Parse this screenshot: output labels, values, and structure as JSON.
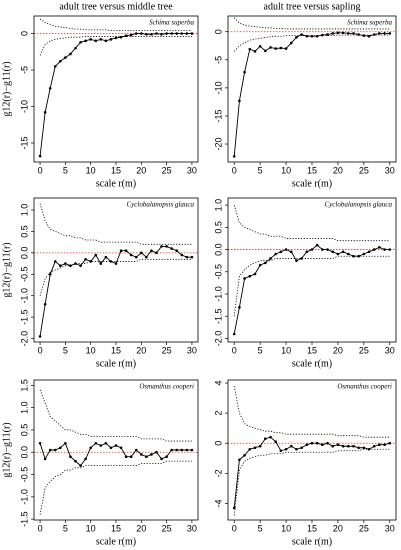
{
  "chart_data": [
    {
      "type": "line",
      "title": "adult tree versus middle tree",
      "annotation": "Schima superba",
      "xlabel": "scale r(m)",
      "ylabel": "g12(r)−g11(r)",
      "x": [
        0,
        1,
        2,
        3,
        4,
        5,
        6,
        7,
        8,
        9,
        10,
        11,
        12,
        13,
        14,
        15,
        16,
        17,
        18,
        19,
        20,
        21,
        22,
        23,
        24,
        25,
        26,
        27,
        28,
        29,
        30
      ],
      "xlim": [
        -1.2,
        31.2
      ],
      "xticks": [
        0,
        5,
        10,
        15,
        20,
        25,
        30
      ],
      "ylim": [
        -17.6,
        2.4
      ],
      "yticks": [
        -15,
        -10,
        -5,
        0
      ],
      "reference_line": 0,
      "reference_color": "#e0302a",
      "series": [
        {
          "color": "#000000",
          "style": "solid",
          "marker": true,
          "values": [
            -16.8,
            -10.8,
            -7.5,
            -4.5,
            -3.8,
            -3.3,
            -2.8,
            -2,
            -1.2,
            -1,
            -0.8,
            -1,
            -0.8,
            -1,
            -0.8,
            -0.6,
            -0.5,
            -0.3,
            -0.2,
            0,
            0,
            -0.1,
            -0.1,
            0,
            -0.1,
            0,
            0,
            0,
            0,
            0,
            0
          ]
        },
        {
          "color": "#000000",
          "style": "dotted",
          "marker": false,
          "values": [
            2,
            1.5,
            1.2,
            1,
            0.9,
            0.8,
            0.7,
            0.6,
            0.6,
            0.5,
            0.5,
            0.5,
            0.5,
            0.5,
            0.4,
            0.4,
            0.4,
            0.4,
            0.4,
            0.4,
            0.4,
            0.4,
            0.4,
            0.4,
            0.4,
            0.4,
            0.4,
            0.4,
            0.4,
            0.4,
            0.4
          ]
        },
        {
          "color": "#000000",
          "style": "dotted",
          "marker": false,
          "values": [
            -3,
            -1.5,
            -1,
            -0.8,
            -0.7,
            -0.6,
            -0.5,
            -0.5,
            -0.5,
            -0.4,
            -0.4,
            -0.4,
            -0.4,
            -0.4,
            -0.4,
            -0.4,
            -0.4,
            -0.4,
            -0.4,
            -0.4,
            -0.4,
            -0.4,
            -0.4,
            -0.4,
            -0.4,
            -0.4,
            -0.4,
            -0.4,
            -0.4,
            -0.4,
            -0.4
          ]
        }
      ]
    },
    {
      "type": "line",
      "title": "adult tree versus sapling",
      "annotation": "Schima superba",
      "xlabel": "scale r(m)",
      "x": [
        0,
        1,
        2,
        3,
        4,
        5,
        6,
        7,
        8,
        9,
        10,
        11,
        12,
        13,
        14,
        15,
        16,
        17,
        18,
        19,
        20,
        21,
        22,
        23,
        24,
        25,
        26,
        27,
        28,
        29,
        30
      ],
      "xlim": [
        -1.2,
        31.2
      ],
      "xticks": [
        0,
        5,
        10,
        15,
        20,
        25,
        30
      ],
      "ylim": [
        -23.2,
        2.8
      ],
      "yticks": [
        -20,
        -15,
        -10,
        -5,
        0
      ],
      "reference_line": 0,
      "reference_color": "#e0302a",
      "series": [
        {
          "color": "#000000",
          "style": "solid",
          "marker": true,
          "values": [
            -22.2,
            -12.3,
            -7.2,
            -3.1,
            -3.5,
            -2.6,
            -3.4,
            -2.8,
            -3,
            -2.9,
            -3,
            -2,
            -1,
            -0.5,
            -0.8,
            -0.8,
            -0.8,
            -0.6,
            -0.5,
            -0.3,
            -0.2,
            -0.2,
            -0.3,
            -0.3,
            -0.5,
            -0.7,
            -0.8,
            -0.5,
            -0.3,
            -0.3,
            -0.3
          ]
        },
        {
          "color": "#000000",
          "style": "dotted",
          "marker": false,
          "values": [
            2.5,
            1.5,
            1.2,
            1,
            0.9,
            0.8,
            0.7,
            0.7,
            0.6,
            0.6,
            0.5,
            0.5,
            0.5,
            0.5,
            0.5,
            0.5,
            0.5,
            0.5,
            0.5,
            0.5,
            0.5,
            0.5,
            0.5,
            0.5,
            0.5,
            0.5,
            0.5,
            0.5,
            0.5,
            0.5,
            0.5
          ]
        },
        {
          "color": "#000000",
          "style": "dotted",
          "marker": false,
          "values": [
            -3.5,
            -2.5,
            -2,
            -1.5,
            -1.3,
            -1.2,
            -1,
            -0.9,
            -0.8,
            -0.8,
            -0.7,
            -0.7,
            -0.7,
            -0.7,
            -0.7,
            -0.7,
            -0.7,
            -0.7,
            -0.7,
            -0.7,
            -0.6,
            -0.6,
            -0.6,
            -0.6,
            -0.6,
            -0.6,
            -0.6,
            -0.6,
            -0.6,
            -0.6,
            -0.6
          ]
        }
      ]
    },
    {
      "type": "line",
      "annotation": "Cyclobalanopsis glauca",
      "xlabel": "scale r(m)",
      "ylabel": "g12(r)−g11(r)",
      "x": [
        0,
        1,
        2,
        3,
        4,
        5,
        6,
        7,
        8,
        9,
        10,
        11,
        12,
        13,
        14,
        15,
        16,
        17,
        18,
        19,
        20,
        21,
        22,
        23,
        24,
        25,
        26,
        27,
        28,
        29,
        30
      ],
      "xlim": [
        -1.2,
        31.2
      ],
      "xticks": [
        0,
        5,
        10,
        15,
        20,
        25,
        30
      ],
      "ylim": [
        -2.08,
        1.28
      ],
      "yticks": [
        {
          "value": -2,
          "label": "-2.0"
        },
        -1.5,
        {
          "value": -1,
          "label": "-1.0"
        },
        -0.5,
        {
          "value": 0,
          "label": "0.0"
        },
        0.5,
        {
          "value": 1,
          "label": "1.0"
        }
      ],
      "reference_line": 0,
      "reference_color": "#e0302a",
      "series": [
        {
          "color": "#000000",
          "style": "solid",
          "marker": true,
          "values": [
            -1.95,
            -1.2,
            -0.5,
            -0.2,
            -0.3,
            -0.25,
            -0.3,
            -0.25,
            -0.3,
            -0.15,
            -0.2,
            -0.05,
            -0.25,
            -0.1,
            -0.2,
            -0.25,
            0.05,
            0.05,
            -0.05,
            -0.1,
            0,
            -0.1,
            0.05,
            0,
            0.15,
            0.15,
            0.1,
            0.05,
            -0.05,
            -0.1,
            -0.1
          ]
        },
        {
          "color": "#000000",
          "style": "dotted",
          "marker": false,
          "values": [
            1.15,
            0.75,
            0.55,
            0.5,
            0.45,
            0.4,
            0.4,
            0.35,
            0.35,
            0.3,
            0.3,
            0.3,
            0.25,
            0.25,
            0.25,
            0.25,
            0.25,
            0.25,
            0.25,
            0.25,
            0.2,
            0.2,
            0.2,
            0.2,
            0.2,
            0.2,
            0.2,
            0.2,
            0.2,
            0.2,
            0.2
          ]
        },
        {
          "color": "#000000",
          "style": "dotted",
          "marker": false,
          "values": [
            -1,
            -0.6,
            -0.45,
            -0.4,
            -0.35,
            -0.3,
            -0.3,
            -0.25,
            -0.25,
            -0.25,
            -0.2,
            -0.2,
            -0.2,
            -0.2,
            -0.2,
            -0.2,
            -0.2,
            -0.2,
            -0.2,
            -0.2,
            -0.15,
            -0.15,
            -0.15,
            -0.15,
            -0.15,
            -0.15,
            -0.15,
            -0.15,
            -0.15,
            -0.15,
            -0.15
          ]
        }
      ]
    },
    {
      "type": "line",
      "annotation": "Cyclobalanopsis glauca",
      "xlabel": "scale r(m)",
      "x": [
        0,
        1,
        2,
        3,
        4,
        5,
        6,
        7,
        8,
        9,
        10,
        11,
        12,
        13,
        14,
        15,
        16,
        17,
        18,
        19,
        20,
        21,
        22,
        23,
        24,
        25,
        26,
        27,
        28,
        29,
        30
      ],
      "xlim": [
        -1.2,
        31.2
      ],
      "xticks": [
        0,
        5,
        10,
        15,
        20,
        25,
        30
      ],
      "ylim": [
        -2.08,
        1.16
      ],
      "yticks": [
        {
          "value": -2,
          "label": "-2.0"
        },
        -1.5,
        {
          "value": -1,
          "label": "-1.0"
        },
        -0.5,
        {
          "value": 0,
          "label": "0.0"
        },
        0.5,
        {
          "value": 1,
          "label": "1.0"
        }
      ],
      "reference_line": 0,
      "reference_color": "#e0302a",
      "series": [
        {
          "color": "#000000",
          "style": "solid",
          "marker": true,
          "values": [
            -1.9,
            -1.3,
            -0.65,
            -0.6,
            -0.55,
            -0.35,
            -0.3,
            -0.2,
            -0.1,
            -0.05,
            0,
            -0.05,
            -0.25,
            -0.2,
            -0.05,
            0,
            0.1,
            0,
            0,
            -0.05,
            -0.1,
            -0.05,
            -0.1,
            -0.15,
            -0.15,
            -0.1,
            -0.05,
            0,
            0.05,
            0,
            0
          ]
        },
        {
          "color": "#000000",
          "style": "dotted",
          "marker": false,
          "values": [
            1,
            0.6,
            0.5,
            0.45,
            0.4,
            0.35,
            0.35,
            0.3,
            0.3,
            0.3,
            0.25,
            0.25,
            0.25,
            0.25,
            0.25,
            0.25,
            0.25,
            0.25,
            0.25,
            0.25,
            0.2,
            0.2,
            0.2,
            0.2,
            0.2,
            0.2,
            0.2,
            0.2,
            0.2,
            0.2,
            0.2
          ]
        },
        {
          "color": "#000000",
          "style": "dotted",
          "marker": false,
          "values": [
            -1.5,
            -0.6,
            -0.45,
            -0.35,
            -0.3,
            -0.25,
            -0.25,
            -0.25,
            -0.2,
            -0.2,
            -0.2,
            -0.2,
            -0.2,
            -0.2,
            -0.2,
            -0.2,
            -0.2,
            -0.2,
            -0.2,
            -0.2,
            -0.15,
            -0.15,
            -0.15,
            -0.15,
            -0.15,
            -0.15,
            -0.15,
            -0.15,
            -0.15,
            -0.15,
            -0.15
          ]
        }
      ]
    },
    {
      "type": "line",
      "annotation": "Osmanthus cooperi",
      "xlabel": "scale r(m)",
      "ylabel": "g12(r)−g11(r)",
      "x": [
        0,
        1,
        2,
        3,
        4,
        5,
        6,
        7,
        8,
        9,
        10,
        11,
        12,
        13,
        14,
        15,
        16,
        17,
        18,
        19,
        20,
        21,
        22,
        23,
        24,
        25,
        26,
        27,
        28,
        29,
        30
      ],
      "xlim": [
        -1.2,
        31.2
      ],
      "xticks": [
        0,
        5,
        10,
        15,
        20,
        25,
        30
      ],
      "ylim": [
        -1.52,
        1.62
      ],
      "yticks": [
        -1.5,
        {
          "value": -1,
          "label": "-1.0"
        },
        -0.5,
        {
          "value": 0,
          "label": "0.0"
        },
        0.5,
        {
          "value": 1,
          "label": "1.0"
        },
        1.5
      ],
      "reference_line": 0,
      "reference_color": "#e0302a",
      "series": [
        {
          "color": "#000000",
          "style": "solid",
          "marker": true,
          "values": [
            0.2,
            -0.15,
            0.05,
            0.05,
            0.1,
            0.2,
            -0.1,
            -0.2,
            -0.3,
            -0.15,
            0.1,
            0.2,
            0.15,
            0.2,
            0.1,
            0.15,
            0.1,
            -0.1,
            -0.1,
            0.05,
            -0.05,
            -0.1,
            -0.05,
            0,
            -0.15,
            -0.1,
            0.05,
            0.05,
            0.05,
            0.05,
            0.05
          ]
        },
        {
          "color": "#000000",
          "style": "dotted",
          "marker": false,
          "values": [
            1.4,
            1.1,
            0.8,
            0.7,
            0.6,
            0.5,
            0.5,
            0.45,
            0.4,
            0.4,
            0.35,
            0.35,
            0.35,
            0.35,
            0.35,
            0.35,
            0.35,
            0.35,
            0.35,
            0.35,
            0.3,
            0.3,
            0.3,
            0.3,
            0.3,
            0.25,
            0.25,
            0.25,
            0.25,
            0.25,
            0.25
          ]
        },
        {
          "color": "#000000",
          "style": "dotted",
          "marker": false,
          "values": [
            -1.4,
            -0.8,
            -0.65,
            -0.55,
            -0.5,
            -0.4,
            -0.4,
            -0.35,
            -0.35,
            -0.3,
            -0.3,
            -0.3,
            -0.3,
            -0.3,
            -0.3,
            -0.3,
            -0.3,
            -0.3,
            -0.3,
            -0.3,
            -0.25,
            -0.25,
            -0.25,
            -0.25,
            -0.25,
            -0.2,
            -0.2,
            -0.2,
            -0.2,
            -0.2,
            -0.2
          ]
        }
      ]
    },
    {
      "type": "line",
      "annotation": "Osmanthus cooperi",
      "xlabel": "scale r(m)",
      "x": [
        0,
        1,
        2,
        3,
        4,
        5,
        6,
        7,
        8,
        9,
        10,
        11,
        12,
        13,
        14,
        15,
        16,
        17,
        18,
        19,
        20,
        21,
        22,
        23,
        24,
        25,
        26,
        27,
        28,
        29,
        30
      ],
      "xlim": [
        -1.2,
        31.2
      ],
      "xticks": [
        0,
        5,
        10,
        15,
        20,
        25,
        30
      ],
      "ylim": [
        -5.1,
        4.2
      ],
      "yticks": [
        -4,
        -2,
        0,
        2,
        4
      ],
      "reference_line": 0,
      "reference_color": "#e0302a",
      "series": [
        {
          "color": "#000000",
          "style": "solid",
          "marker": true,
          "values": [
            -4.3,
            -1.1,
            -0.8,
            -0.4,
            -0.3,
            -0.2,
            0.3,
            0.4,
            0.1,
            -0.5,
            -0.4,
            -0.2,
            -0.4,
            -0.3,
            -0.1,
            0,
            0,
            -0.1,
            0,
            -0.2,
            -0.1,
            -0.2,
            -0.2,
            -0.2,
            -0.3,
            -0.3,
            -0.4,
            -0.2,
            -0.1,
            -0.1,
            0
          ]
        },
        {
          "color": "#000000",
          "style": "dotted",
          "marker": false,
          "values": [
            3.8,
            2,
            1.3,
            1.1,
            1,
            0.9,
            0.8,
            0.8,
            0.7,
            0.7,
            0.6,
            0.6,
            0.6,
            0.6,
            0.6,
            0.6,
            0.6,
            0.6,
            0.6,
            0.6,
            0.5,
            0.5,
            0.5,
            0.5,
            0.5,
            0.4,
            0.4,
            0.4,
            0.4,
            0.4,
            0.4
          ]
        },
        {
          "color": "#000000",
          "style": "dotted",
          "marker": false,
          "values": [
            -4.8,
            -1.8,
            -1.2,
            -1,
            -0.9,
            -0.8,
            -0.8,
            -0.7,
            -0.7,
            -0.7,
            -0.6,
            -0.6,
            -0.6,
            -0.6,
            -0.6,
            -0.6,
            -0.6,
            -0.6,
            -0.6,
            -0.6,
            -0.5,
            -0.5,
            -0.5,
            -0.5,
            -0.5,
            -0.4,
            -0.4,
            -0.4,
            -0.4,
            -0.4,
            -0.4
          ]
        }
      ]
    }
  ]
}
